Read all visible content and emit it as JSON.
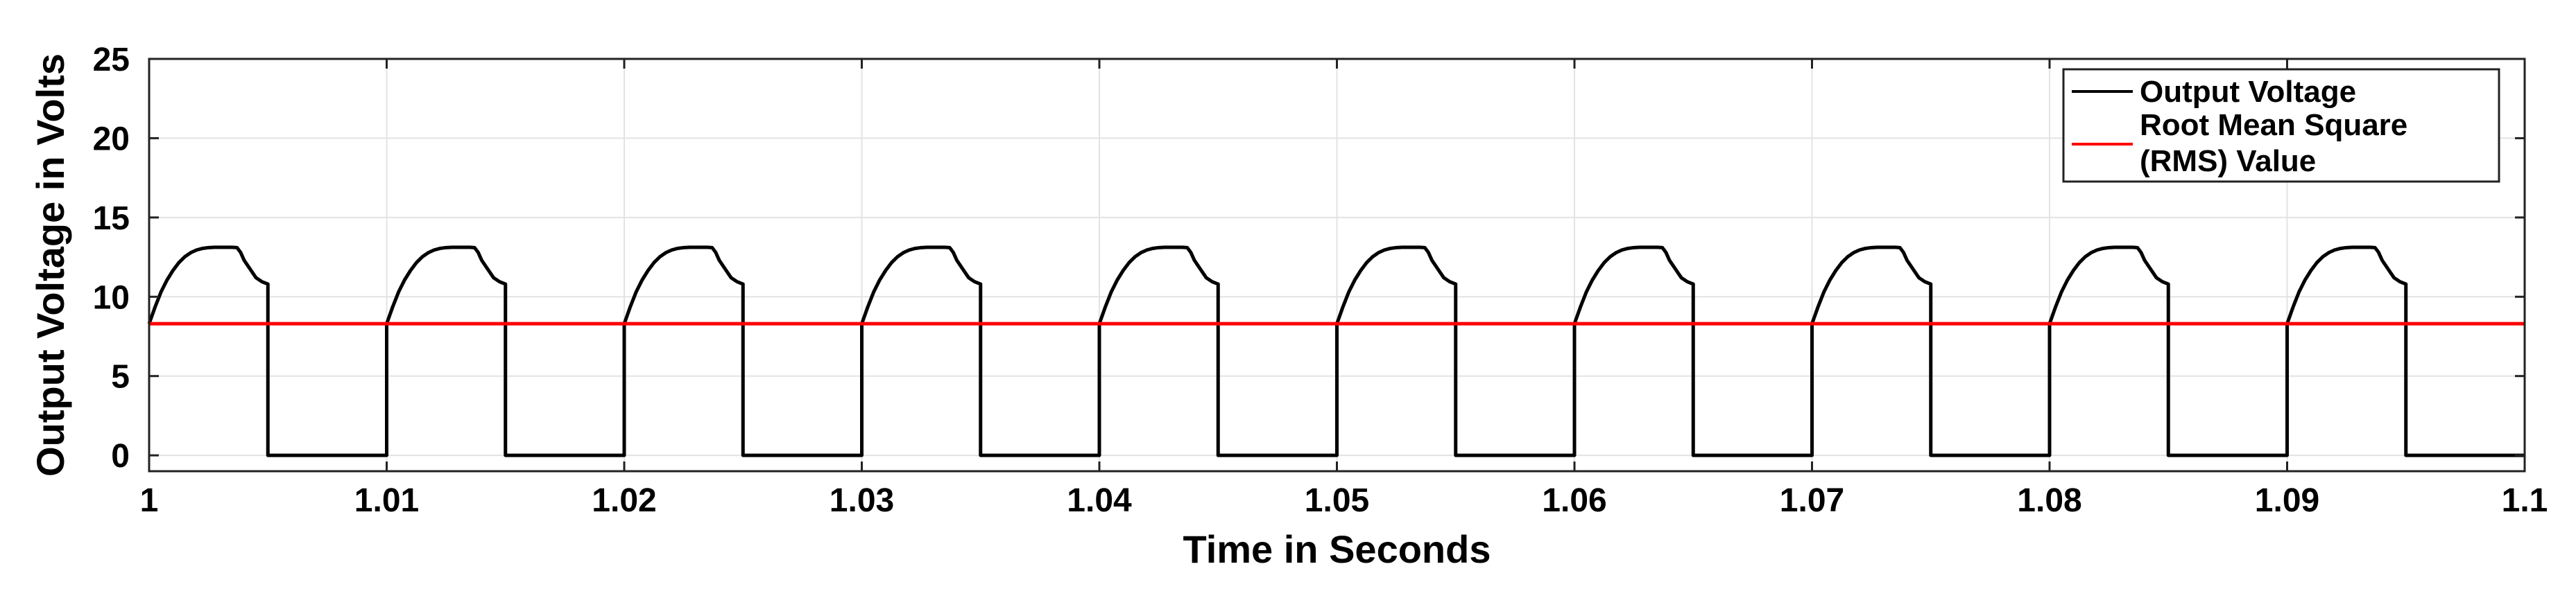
{
  "chart_data": {
    "type": "line",
    "xlabel": "Time in Seconds",
    "ylabel": "Output Voltage in Volts",
    "xlim": [
      1,
      1.1
    ],
    "ylim": [
      -1,
      25
    ],
    "x_ticks": [
      1,
      1.01,
      1.02,
      1.03,
      1.04,
      1.05,
      1.06,
      1.07,
      1.08,
      1.09,
      1.1
    ],
    "x_tick_labels": [
      "1",
      "1.01",
      "1.02",
      "1.03",
      "1.04",
      "1.05",
      "1.06",
      "1.07",
      "1.08",
      "1.09",
      "1.1"
    ],
    "y_ticks": [
      0,
      5,
      10,
      15,
      20,
      25
    ],
    "y_tick_labels": [
      "0",
      "5",
      "10",
      "15",
      "20",
      "25"
    ],
    "grid": true,
    "legend_position": "top-right",
    "series": [
      {
        "name": "Output Voltage",
        "color": "#000000",
        "x": [
          1.0,
          1.00025,
          1.0005,
          1.00075,
          1.001,
          1.00125,
          1.0015,
          1.00175,
          1.002,
          1.00225,
          1.0025,
          1.00275,
          1.003,
          1.00325,
          1.0035,
          1.0037,
          1.00385,
          1.004,
          1.00425,
          1.0045,
          1.00475,
          1.005,
          1.005,
          1.01
        ],
        "values": [
          8.3,
          9.35,
          10.3,
          11.05,
          11.65,
          12.15,
          12.52,
          12.78,
          12.95,
          13.05,
          13.1,
          13.12,
          13.12,
          13.12,
          13.12,
          13.1,
          12.8,
          12.3,
          11.75,
          11.2,
          10.95,
          10.8,
          0,
          0
        ],
        "period": 0.01,
        "periods": 10
      },
      {
        "name": "Root Mean Square\n(RMS) Value",
        "color": "#ff0000",
        "x": [
          1.0,
          1.1
        ],
        "values": [
          8.3,
          8.3
        ]
      }
    ]
  }
}
